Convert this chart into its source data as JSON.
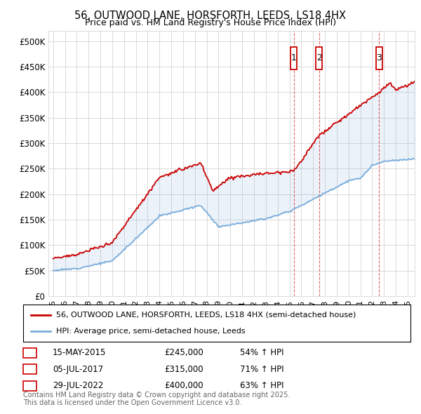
{
  "title": "56, OUTWOOD LANE, HORSFORTH, LEEDS, LS18 4HX",
  "subtitle": "Price paid vs. HM Land Registry's House Price Index (HPI)",
  "house_color": "#cc0000",
  "hpi_color": "#7aaddc",
  "bg_color": "#ffffff",
  "grid_color": "#cccccc",
  "ylim": [
    0,
    520000
  ],
  "yticks": [
    0,
    50000,
    100000,
    150000,
    200000,
    250000,
    300000,
    350000,
    400000,
    450000,
    500000
  ],
  "transactions": [
    {
      "id": 1,
      "date": "15-MAY-2015",
      "price": 245000,
      "hpi_pct": "54%",
      "x_year": 2015.37
    },
    {
      "id": 2,
      "date": "05-JUL-2017",
      "price": 315000,
      "hpi_pct": "71%",
      "x_year": 2017.51
    },
    {
      "id": 3,
      "date": "29-JUL-2022",
      "price": 400000,
      "hpi_pct": "63%",
      "x_year": 2022.58
    }
  ],
  "legend_house_label": "56, OUTWOOD LANE, HORSFORTH, LEEDS, LS18 4HX (semi-detached house)",
  "legend_hpi_label": "HPI: Average price, semi-detached house, Leeds",
  "footnote": "Contains HM Land Registry data © Crown copyright and database right 2025.\nThis data is licensed under the Open Government Licence v3.0.",
  "xlim": [
    1994.6,
    2025.6
  ]
}
